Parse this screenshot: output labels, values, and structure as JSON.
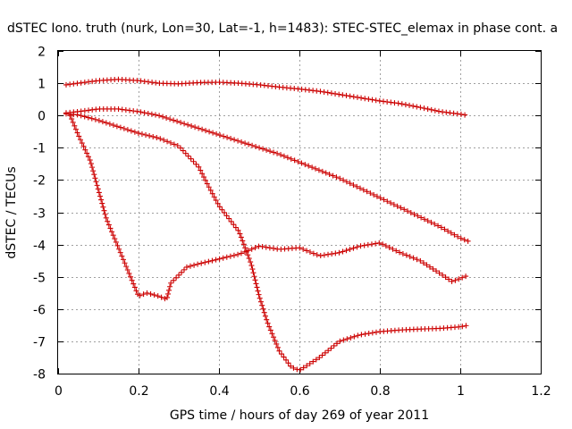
{
  "chart_data": {
    "type": "scatter",
    "title": "dSTEC Iono. truth (nurk, Lon=30, Lat=-1, h=1483): STEC-STEC_elemax in phase cont. a",
    "xlabel": "GPS time / hours of day 269 of year 2011",
    "ylabel": "dSTEC  / TECUs",
    "xlim": [
      0,
      1.2
    ],
    "ylim": [
      -8,
      2
    ],
    "xticks": [
      0,
      0.2,
      0.4,
      0.6,
      0.8,
      1,
      1.2
    ],
    "xtick_labels": [
      "0",
      "0.2",
      "0.4",
      "0.6",
      "0.8",
      "1",
      "1.2"
    ],
    "yticks": [
      -8,
      -7,
      -6,
      -5,
      -4,
      -3,
      -2,
      -1,
      0,
      1,
      2
    ],
    "ytick_labels": [
      "-8",
      "-7",
      "-6",
      "-5",
      "-4",
      "-3",
      "-2",
      "-1",
      "0",
      "1",
      "2"
    ],
    "grid": true,
    "marker": "+",
    "color": "#cc0000",
    "series": [
      {
        "x": [
          0.02,
          0.05,
          0.1,
          0.15,
          0.2,
          0.25,
          0.3,
          0.35,
          0.4,
          0.45,
          0.5,
          0.55,
          0.6,
          0.65,
          0.7,
          0.75,
          0.8,
          0.85,
          0.9,
          0.95,
          1.0,
          1.02
        ],
        "y": [
          0.95,
          1.0,
          1.08,
          1.12,
          1.08,
          1.0,
          0.98,
          1.02,
          1.03,
          1.0,
          0.95,
          0.88,
          0.82,
          0.75,
          0.65,
          0.55,
          0.45,
          0.37,
          0.25,
          0.12,
          0.04,
          0.0
        ]
      },
      {
        "x": [
          0.02,
          0.05,
          0.1,
          0.15,
          0.2,
          0.25,
          0.3,
          0.35,
          0.4,
          0.45,
          0.5,
          0.55,
          0.6,
          0.65,
          0.7,
          0.75,
          0.8,
          0.85,
          0.9,
          0.95,
          1.0,
          1.02
        ],
        "y": [
          0.08,
          0.12,
          0.2,
          0.2,
          0.12,
          0.0,
          -0.2,
          -0.4,
          -0.6,
          -0.8,
          -1.0,
          -1.2,
          -1.45,
          -1.7,
          -1.95,
          -2.25,
          -2.55,
          -2.85,
          -3.15,
          -3.45,
          -3.8,
          -3.9
        ]
      },
      {
        "x": [
          0.02,
          0.05,
          0.1,
          0.15,
          0.2,
          0.25,
          0.3,
          0.35,
          0.37,
          0.4,
          0.45,
          0.48,
          0.5,
          0.52,
          0.55,
          0.58,
          0.6,
          0.65,
          0.7,
          0.75,
          0.8,
          0.85,
          0.9,
          0.95,
          1.0,
          1.02
        ],
        "y": [
          0.05,
          0.02,
          -0.15,
          -0.35,
          -0.55,
          -0.7,
          -0.95,
          -1.6,
          -2.1,
          -2.8,
          -3.6,
          -4.6,
          -5.6,
          -6.4,
          -7.3,
          -7.8,
          -7.9,
          -7.5,
          -7.0,
          -6.8,
          -6.7,
          -6.65,
          -6.62,
          -6.6,
          -6.55,
          -6.5
        ]
      },
      {
        "x": [
          0.03,
          0.05,
          0.08,
          0.1,
          0.12,
          0.15,
          0.18,
          0.2,
          0.22,
          0.25,
          0.27,
          0.28,
          0.3,
          0.32,
          0.35,
          0.4,
          0.45,
          0.5,
          0.55,
          0.6,
          0.65,
          0.7,
          0.75,
          0.8,
          0.85,
          0.9,
          0.95,
          0.98,
          1.0,
          1.02
        ],
        "y": [
          0.0,
          -0.6,
          -1.4,
          -2.3,
          -3.2,
          -4.1,
          -5.0,
          -5.6,
          -5.5,
          -5.6,
          -5.7,
          -5.2,
          -4.95,
          -4.7,
          -4.6,
          -4.45,
          -4.3,
          -4.05,
          -4.15,
          -4.1,
          -4.35,
          -4.25,
          -4.05,
          -3.95,
          -4.25,
          -4.5,
          -4.9,
          -5.15,
          -5.05,
          -4.95
        ]
      }
    ]
  }
}
